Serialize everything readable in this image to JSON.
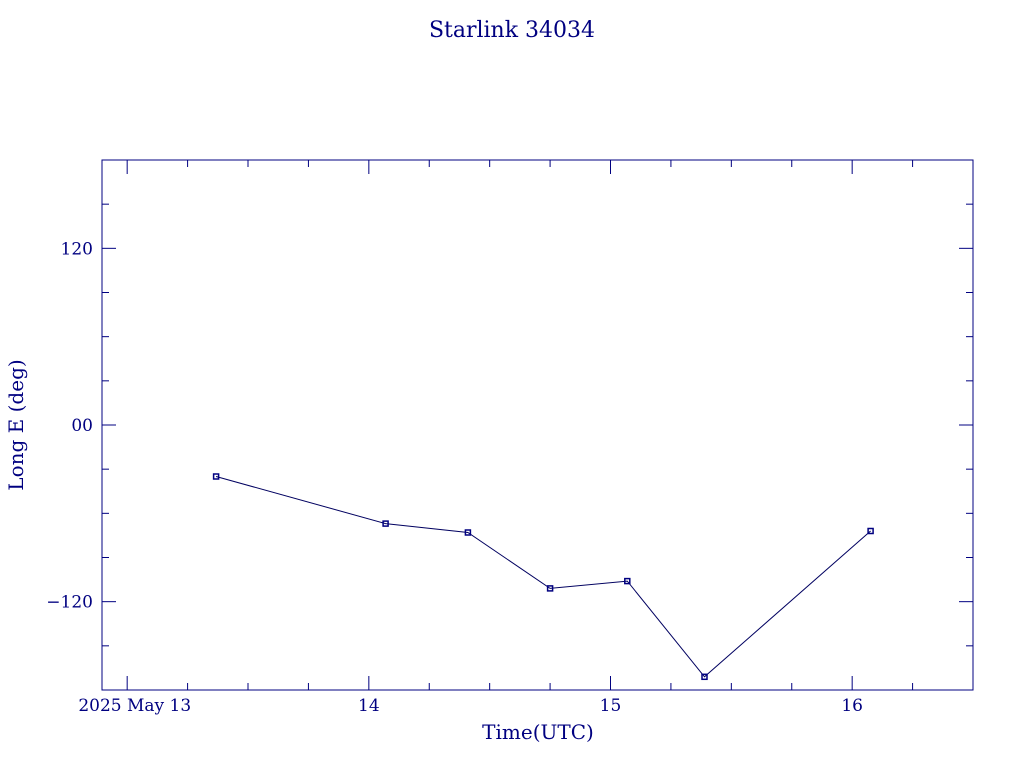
{
  "chart_data": {
    "type": "line",
    "title": "Starlink 34034",
    "xlabel": "Time(UTC)",
    "ylabel": "Long E (deg)",
    "x_axis": {
      "type": "date",
      "range_start": "2025-05-12T21:30:00Z",
      "range_end": "2025-05-16T12:00:00Z",
      "tick_labels": [
        {
          "text": "2025 May 13",
          "date": "2025-05-13T00:00:00Z"
        },
        {
          "text": "14",
          "date": "2025-05-14T00:00:00Z"
        },
        {
          "text": "15",
          "date": "2025-05-15T00:00:00Z"
        },
        {
          "text": "16",
          "date": "2025-05-16T00:00:00Z"
        }
      ]
    },
    "ylim": [
      -180,
      180
    ],
    "y_tick_labels": [
      {
        "text": "120",
        "value": 120
      },
      {
        "text": "00",
        "value": 0
      },
      {
        "text": "−120",
        "value": -120
      }
    ],
    "grid": false,
    "legend": "none",
    "series": [
      {
        "x": [
          "2025-05-13T08:50:00Z",
          "2025-05-14T01:40:00Z",
          "2025-05-14T09:50:00Z",
          "2025-05-14T18:00:00Z",
          "2025-05-15T01:40:00Z",
          "2025-05-15T09:20:00Z",
          "2025-05-16T01:50:00Z"
        ],
        "y": [
          -35,
          -67,
          -73,
          -111,
          -106,
          -171,
          -72
        ]
      }
    ],
    "colors": {
      "axes": "#000080",
      "text": "#000080",
      "line": "#000060",
      "marker": "#000080"
    }
  }
}
